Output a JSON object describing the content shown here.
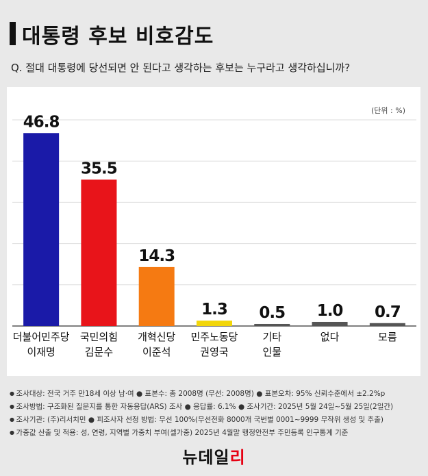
{
  "header": {
    "title": "대통령 후보 비호감도",
    "question": "Q. 절대 대통령에 당선되면 안 된다고 생각하는 후보는 누구라고 생각하십니까?"
  },
  "unit_label": "(단위 : %)",
  "chart_data": {
    "type": "bar",
    "title": "대통령 후보 비호감도",
    "categories": [
      [
        "더불어민주당",
        "이재명"
      ],
      [
        "국민의힘",
        "김문수"
      ],
      [
        "개혁신당",
        "이준석"
      ],
      [
        "민주노동당",
        "권영국"
      ],
      [
        "기타",
        "인물"
      ],
      [
        "없다"
      ],
      [
        "모름"
      ]
    ],
    "values": [
      46.8,
      35.5,
      14.3,
      1.3,
      0.5,
      1.0,
      0.7
    ],
    "value_labels": [
      "46.8",
      "35.5",
      "14.3",
      "1.3",
      "0.5",
      "1.0",
      "0.7"
    ],
    "colors": [
      "#1a1aa8",
      "#e8141a",
      "#f57a12",
      "#f2d60a",
      "#555555",
      "#555555",
      "#555555"
    ],
    "ylim": [
      0,
      50
    ],
    "grid": true,
    "xlabel": "",
    "ylabel": ""
  },
  "notes": [
    "조사대상: 전국 거주 만18세 이상 남·여  ● 표본수: 총 2008명 (무선: 2008명)  ● 표본오차: 95% 신뢰수준에서 ±2.2%p",
    "조사방법: 구조화된 질문지를 통한 자동응답(ARS) 조사  ● 응답률: 6.1%  ● 조사기간: 2025년 5월 24일~5월 25일(2일간)",
    "조사기관: (주)리서치민  ● 피조사자 선정 방법: 무선 100%(무선전화 8000개 국번별 0001~9999 무작위 생성 및 추출)",
    "가중값 산출 및 적용: 성, 연령, 지역별 가중치 부여(셀가중) 2025년 4월말 행정안전부 주민등록 인구통계 기준"
  ],
  "logo": {
    "part1": "뉴데일",
    "part2": "리"
  }
}
